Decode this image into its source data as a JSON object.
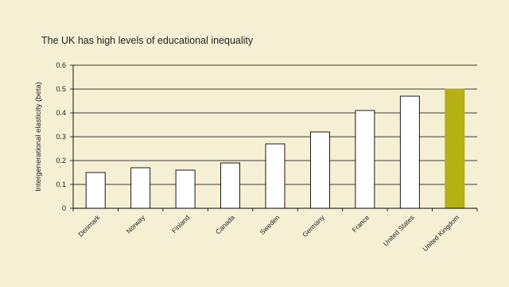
{
  "chart_data": {
    "type": "bar",
    "title": "The UK has high levels of educational inequality",
    "xlabel": "",
    "ylabel": "Intergenerational elasticity (beta)",
    "ylim": [
      0,
      0.6
    ],
    "yticks": [
      "0",
      "0.1",
      "0.2",
      "0.3",
      "0.4",
      "0.5",
      "0.6"
    ],
    "grid": true,
    "categories": [
      "Denmark",
      "Norway",
      "Finland",
      "Canada",
      "Sweden",
      "Germany",
      "France",
      "United States",
      "United Kingdom"
    ],
    "values": [
      0.15,
      0.17,
      0.16,
      0.19,
      0.27,
      0.32,
      0.41,
      0.47,
      0.5
    ],
    "colors": {
      "default_bar": "#ffffff",
      "highlight_bar": "#b5b014",
      "highlight_category": "United Kingdom",
      "background": "#f5f0d4"
    }
  }
}
